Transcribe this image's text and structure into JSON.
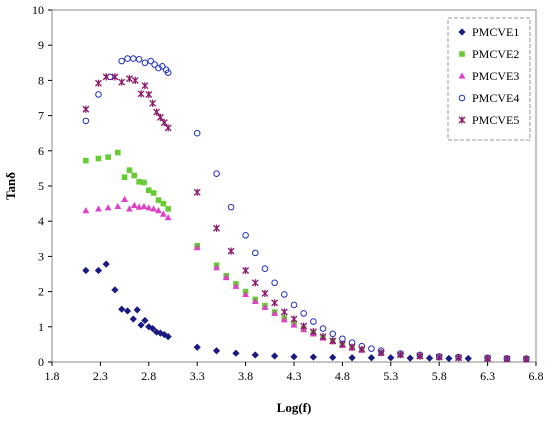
{
  "chart_data": {
    "type": "scatter",
    "title": "",
    "xlabel": "Log(f)",
    "ylabel": "Tanδ",
    "xlim": [
      1.8,
      6.8
    ],
    "ylim": [
      0,
      10
    ],
    "xticks": [
      "1.8",
      "2.3",
      "2.8",
      "3.3",
      "3.8",
      "4.3",
      "4.8",
      "5.3",
      "5.8",
      "6.3",
      "6.8"
    ],
    "yticks": [
      "0",
      "1",
      "2",
      "3",
      "4",
      "5",
      "6",
      "7",
      "8",
      "9",
      "10"
    ],
    "grid": false,
    "legend_position": "top-right",
    "series": [
      {
        "name": "PMCVE1",
        "marker": "diamond",
        "color": "#1a1a80",
        "x": [
          2.15,
          2.28,
          2.36,
          2.45,
          2.52,
          2.58,
          2.64,
          2.68,
          2.72,
          2.76,
          2.8,
          2.84,
          2.88,
          2.92,
          2.96,
          3.0,
          3.3,
          3.5,
          3.7,
          3.9,
          4.1,
          4.3,
          4.5,
          4.7,
          4.9,
          5.1,
          5.3,
          5.5,
          5.7,
          5.9,
          6.1,
          6.3,
          6.5,
          6.7
        ],
        "y": [
          2.6,
          2.6,
          2.78,
          2.05,
          1.5,
          1.45,
          1.22,
          1.48,
          1.05,
          1.18,
          1.0,
          0.95,
          0.85,
          0.82,
          0.78,
          0.72,
          0.42,
          0.32,
          0.25,
          0.2,
          0.17,
          0.15,
          0.14,
          0.13,
          0.12,
          0.12,
          0.12,
          0.11,
          0.11,
          0.1,
          0.1,
          0.1,
          0.1,
          0.1
        ]
      },
      {
        "name": "PMCVE2",
        "marker": "square",
        "color": "#66cc33",
        "x": [
          2.15,
          2.28,
          2.38,
          2.48,
          2.55,
          2.6,
          2.65,
          2.7,
          2.75,
          2.8,
          2.85,
          2.9,
          2.95,
          3.0,
          3.3,
          3.5,
          3.6,
          3.7,
          3.8,
          3.9,
          4.0,
          4.1,
          4.2,
          4.3,
          4.4,
          4.5,
          4.6,
          4.7,
          4.8,
          4.9,
          5.0,
          5.2,
          5.4,
          5.6,
          5.8,
          6.0,
          6.3,
          6.5,
          6.7
        ],
        "y": [
          5.72,
          5.78,
          5.82,
          5.95,
          5.25,
          5.45,
          5.3,
          5.12,
          5.1,
          4.88,
          4.8,
          4.6,
          4.5,
          4.35,
          3.3,
          2.75,
          2.45,
          2.22,
          2.0,
          1.78,
          1.6,
          1.42,
          1.25,
          1.1,
          0.95,
          0.82,
          0.7,
          0.6,
          0.5,
          0.42,
          0.35,
          0.25,
          0.2,
          0.16,
          0.13,
          0.12,
          0.1,
          0.09,
          0.08
        ]
      },
      {
        "name": "PMCVE3",
        "marker": "triangle",
        "color": "#e040c8",
        "x": [
          2.15,
          2.28,
          2.38,
          2.48,
          2.55,
          2.6,
          2.65,
          2.7,
          2.75,
          2.8,
          2.85,
          2.9,
          2.95,
          3.0,
          3.3,
          3.5,
          3.6,
          3.7,
          3.8,
          3.9,
          4.0,
          4.1,
          4.2,
          4.3,
          4.4,
          4.5,
          4.6,
          4.7,
          4.8,
          4.9,
          5.0,
          5.2,
          5.4,
          5.6,
          5.8,
          6.0,
          6.3,
          6.5,
          6.7
        ],
        "y": [
          4.3,
          4.35,
          4.38,
          4.42,
          4.62,
          4.35,
          4.45,
          4.4,
          4.42,
          4.38,
          4.35,
          4.3,
          4.2,
          4.1,
          3.25,
          2.68,
          2.4,
          2.15,
          1.92,
          1.72,
          1.55,
          1.38,
          1.2,
          1.05,
          0.92,
          0.8,
          0.68,
          0.58,
          0.48,
          0.4,
          0.34,
          0.25,
          0.2,
          0.16,
          0.13,
          0.12,
          0.1,
          0.09,
          0.08
        ]
      },
      {
        "name": "PMCVE4",
        "marker": "circle",
        "color": "#2030c0",
        "x": [
          2.15,
          2.28,
          2.4,
          2.52,
          2.58,
          2.64,
          2.7,
          2.76,
          2.82,
          2.86,
          2.9,
          2.94,
          2.98,
          3.0,
          3.3,
          3.5,
          3.65,
          3.8,
          3.9,
          4.0,
          4.1,
          4.2,
          4.3,
          4.4,
          4.5,
          4.6,
          4.7,
          4.8,
          4.9,
          5.0,
          5.1,
          5.2,
          5.4,
          5.6,
          5.8,
          6.0,
          6.3,
          6.5,
          6.7
        ],
        "y": [
          6.85,
          7.6,
          8.1,
          8.55,
          8.62,
          8.62,
          8.6,
          8.5,
          8.55,
          8.45,
          8.35,
          8.4,
          8.3,
          8.22,
          6.5,
          5.35,
          4.4,
          3.6,
          3.1,
          2.65,
          2.25,
          1.92,
          1.62,
          1.38,
          1.15,
          0.95,
          0.8,
          0.66,
          0.55,
          0.45,
          0.38,
          0.32,
          0.24,
          0.2,
          0.16,
          0.14,
          0.12,
          0.1,
          0.09
        ]
      },
      {
        "name": "PMCVE5",
        "marker": "star",
        "color": "#8b1a6b",
        "x": [
          2.15,
          2.28,
          2.36,
          2.45,
          2.52,
          2.6,
          2.66,
          2.72,
          2.76,
          2.8,
          2.84,
          2.88,
          2.92,
          2.96,
          3.0,
          3.3,
          3.5,
          3.65,
          3.8,
          3.9,
          4.0,
          4.1,
          4.2,
          4.3,
          4.4,
          4.5,
          4.6,
          4.7,
          4.8,
          4.9,
          5.0,
          5.2,
          5.4,
          5.6,
          5.8,
          6.0,
          6.3,
          6.5,
          6.7
        ],
        "y": [
          7.18,
          7.92,
          8.1,
          8.1,
          7.95,
          8.05,
          8.0,
          7.62,
          7.85,
          7.6,
          7.35,
          7.1,
          6.95,
          6.8,
          6.65,
          4.82,
          3.8,
          3.15,
          2.6,
          2.25,
          1.95,
          1.68,
          1.42,
          1.22,
          1.02,
          0.86,
          0.72,
          0.6,
          0.5,
          0.42,
          0.36,
          0.27,
          0.21,
          0.17,
          0.14,
          0.12,
          0.1,
          0.09,
          0.08
        ]
      }
    ]
  }
}
